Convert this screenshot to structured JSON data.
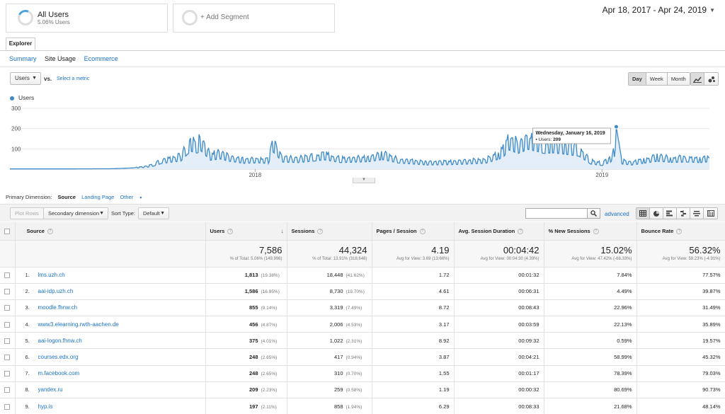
{
  "segments": {
    "active": {
      "name": "All Users",
      "sub": "5.06% Users"
    },
    "add_label": "+ Add Segment"
  },
  "date_range": "Apr 18, 2017 - Apr 24, 2019",
  "explorer_tab": "Explorer",
  "subtabs": [
    "Summary",
    "Site Usage",
    "Ecommerce"
  ],
  "metric": {
    "selected": "Users",
    "vs": "vs.",
    "select_metric": "Select a metric"
  },
  "period_buttons": [
    "Day",
    "Week",
    "Month"
  ],
  "legend_label": "Users",
  "chart_data": {
    "type": "line",
    "series": [
      {
        "name": "Users"
      }
    ],
    "ylim": [
      0,
      300
    ],
    "yticks": [
      "300",
      "200",
      "100"
    ],
    "xticks": [
      {
        "label": "2018",
        "date": "2018-01-01"
      },
      {
        "label": "2019",
        "date": "2019-01-01"
      }
    ],
    "x_range": [
      "2017-04-18",
      "2019-04-24"
    ],
    "fill": true,
    "color": "#3d8ac8",
    "tooltip": {
      "date": "Wednesday, January 16, 2019",
      "label": "Users:",
      "value": "209"
    },
    "points": [
      {
        "date": "2017-04-18",
        "users": 1
      },
      {
        "date": "2017-06-15",
        "users": 1
      },
      {
        "date": "2017-08-05",
        "users": 2
      },
      {
        "date": "2017-08-25",
        "users": 6
      },
      {
        "date": "2017-09-10",
        "users": 14
      },
      {
        "date": "2017-09-17",
        "users": 24
      },
      {
        "date": "2017-09-24",
        "users": 41
      },
      {
        "date": "2017-10-15",
        "users": 60
      },
      {
        "date": "2017-10-22",
        "users": 110
      },
      {
        "date": "2017-10-26",
        "users": 130
      },
      {
        "date": "2017-11-01",
        "users": 118
      },
      {
        "date": "2017-11-05",
        "users": 135
      },
      {
        "date": "2017-11-15",
        "users": 65
      },
      {
        "date": "2017-11-25",
        "users": 75
      },
      {
        "date": "2017-12-05",
        "users": 58
      },
      {
        "date": "2017-12-20",
        "users": 43
      },
      {
        "date": "2018-01-05",
        "users": 46
      },
      {
        "date": "2018-01-15",
        "users": 41
      },
      {
        "date": "2018-01-20",
        "users": 126
      },
      {
        "date": "2018-01-30",
        "users": 52
      },
      {
        "date": "2018-02-15",
        "users": 48
      },
      {
        "date": "2018-03-05",
        "users": 60
      },
      {
        "date": "2018-03-15",
        "users": 68
      },
      {
        "date": "2018-04-01",
        "users": 48
      },
      {
        "date": "2018-05-01",
        "users": 55
      },
      {
        "date": "2018-05-15",
        "users": 70
      },
      {
        "date": "2018-06-01",
        "users": 45
      },
      {
        "date": "2018-07-01",
        "users": 30
      },
      {
        "date": "2018-08-01",
        "users": 34
      },
      {
        "date": "2018-09-01",
        "users": 44
      },
      {
        "date": "2018-09-15",
        "users": 75
      },
      {
        "date": "2018-09-20",
        "users": 96
      },
      {
        "date": "2018-09-25",
        "users": 140
      },
      {
        "date": "2018-10-05",
        "users": 116
      },
      {
        "date": "2018-10-15",
        "users": 145
      },
      {
        "date": "2018-10-25",
        "users": 130
      },
      {
        "date": "2018-11-01",
        "users": 115
      },
      {
        "date": "2018-11-10",
        "users": 120
      },
      {
        "date": "2018-11-25",
        "users": 108
      },
      {
        "date": "2018-12-08",
        "users": 95
      },
      {
        "date": "2018-12-20",
        "users": 38
      },
      {
        "date": "2019-01-01",
        "users": 27
      },
      {
        "date": "2019-01-10",
        "users": 52
      },
      {
        "date": "2019-01-14",
        "users": 90
      },
      {
        "date": "2019-01-16",
        "users": 209
      },
      {
        "date": "2019-01-22",
        "users": 38
      },
      {
        "date": "2019-02-01",
        "users": 30
      },
      {
        "date": "2019-02-15",
        "users": 45
      },
      {
        "date": "2019-03-01",
        "users": 58
      },
      {
        "date": "2019-03-15",
        "users": 50
      },
      {
        "date": "2019-04-01",
        "users": 52
      },
      {
        "date": "2019-04-15",
        "users": 48
      },
      {
        "date": "2019-04-24",
        "users": 55
      }
    ]
  },
  "dimension": {
    "label": "Primary Dimension:",
    "active": "Source",
    "links": [
      "Landing Page",
      "Other"
    ]
  },
  "toolbar": {
    "plot_rows": "Plot Rows",
    "secondary_dim": "Secondary dimension",
    "sort_type_label": "Sort Type:",
    "sort_type": "Default",
    "search_value": "",
    "advanced": "advanced"
  },
  "table": {
    "headers": [
      "Source",
      "Users",
      "Sessions",
      "Pages / Session",
      "Avg. Session Duration",
      "% New Sessions",
      "Bounce Rate"
    ],
    "totals": [
      {
        "value": "7,586",
        "sub": "% of Total: 5.06% (149,996)"
      },
      {
        "value": "44,324",
        "sub": "% of Total: 13.91% (318,648)"
      },
      {
        "value": "4.19",
        "sub": "Avg for View: 3.69 (13.66%)"
      },
      {
        "value": "00:04:42",
        "sub": "Avg for View: 00:04:30 (4.39%)"
      },
      {
        "value": "15.02%",
        "sub": "Avg for View: 47.42% (-68.33%)"
      },
      {
        "value": "56.32%",
        "sub": "Avg for View: 59.23% (-4.91%)"
      }
    ],
    "rows": [
      {
        "num": "1.",
        "source": "lms.uzh.ch",
        "users": "1,813",
        "users_pct": "(19.38%)",
        "sessions": "18,448",
        "sessions_pct": "(41.62%)",
        "pps": "1.72",
        "dur": "00:01:32",
        "new": "7.84%",
        "bounce": "77.57%"
      },
      {
        "num": "2.",
        "source": "aai-idp.uzh.ch",
        "users": "1,586",
        "users_pct": "(16.95%)",
        "sessions": "8,730",
        "sessions_pct": "(19.70%)",
        "pps": "4.61",
        "dur": "00:06:31",
        "new": "4.49%",
        "bounce": "39.87%"
      },
      {
        "num": "3.",
        "source": "moodle.fhnw.ch",
        "users": "855",
        "users_pct": "(9.14%)",
        "sessions": "3,319",
        "sessions_pct": "(7.49%)",
        "pps": "8.72",
        "dur": "00:08:43",
        "new": "22.96%",
        "bounce": "31.49%"
      },
      {
        "num": "4.",
        "source": "www3.elearning.rwth-aachen.de",
        "users": "456",
        "users_pct": "(4.87%)",
        "sessions": "2,006",
        "sessions_pct": "(4.53%)",
        "pps": "3.17",
        "dur": "00:03:59",
        "new": "22.13%",
        "bounce": "35.89%"
      },
      {
        "num": "5.",
        "source": "aai-logon.fhnw.ch",
        "users": "375",
        "users_pct": "(4.01%)",
        "sessions": "1,022",
        "sessions_pct": "(2.31%)",
        "pps": "8.92",
        "dur": "00:09:32",
        "new": "0.59%",
        "bounce": "19.57%"
      },
      {
        "num": "6.",
        "source": "courses.edx.org",
        "users": "248",
        "users_pct": "(2.65%)",
        "sessions": "417",
        "sessions_pct": "(0.94%)",
        "pps": "3.87",
        "dur": "00:04:21",
        "new": "58.99%",
        "bounce": "45.32%"
      },
      {
        "num": "7.",
        "source": "m.facebook.com",
        "users": "248",
        "users_pct": "(2.65%)",
        "sessions": "310",
        "sessions_pct": "(0.70%)",
        "pps": "1.55",
        "dur": "00:01:17",
        "new": "78.39%",
        "bounce": "79.03%"
      },
      {
        "num": "8.",
        "source": "yandex.ru",
        "users": "209",
        "users_pct": "(2.23%)",
        "sessions": "259",
        "sessions_pct": "(0.58%)",
        "pps": "1.19",
        "dur": "00:00:32",
        "new": "80.69%",
        "bounce": "90.73%"
      },
      {
        "num": "9.",
        "source": "hyp.is",
        "users": "197",
        "users_pct": "(2.11%)",
        "sessions": "858",
        "sessions_pct": "(1.94%)",
        "pps": "6.29",
        "dur": "00:08:33",
        "new": "21.68%",
        "bounce": "48.14%"
      }
    ]
  }
}
